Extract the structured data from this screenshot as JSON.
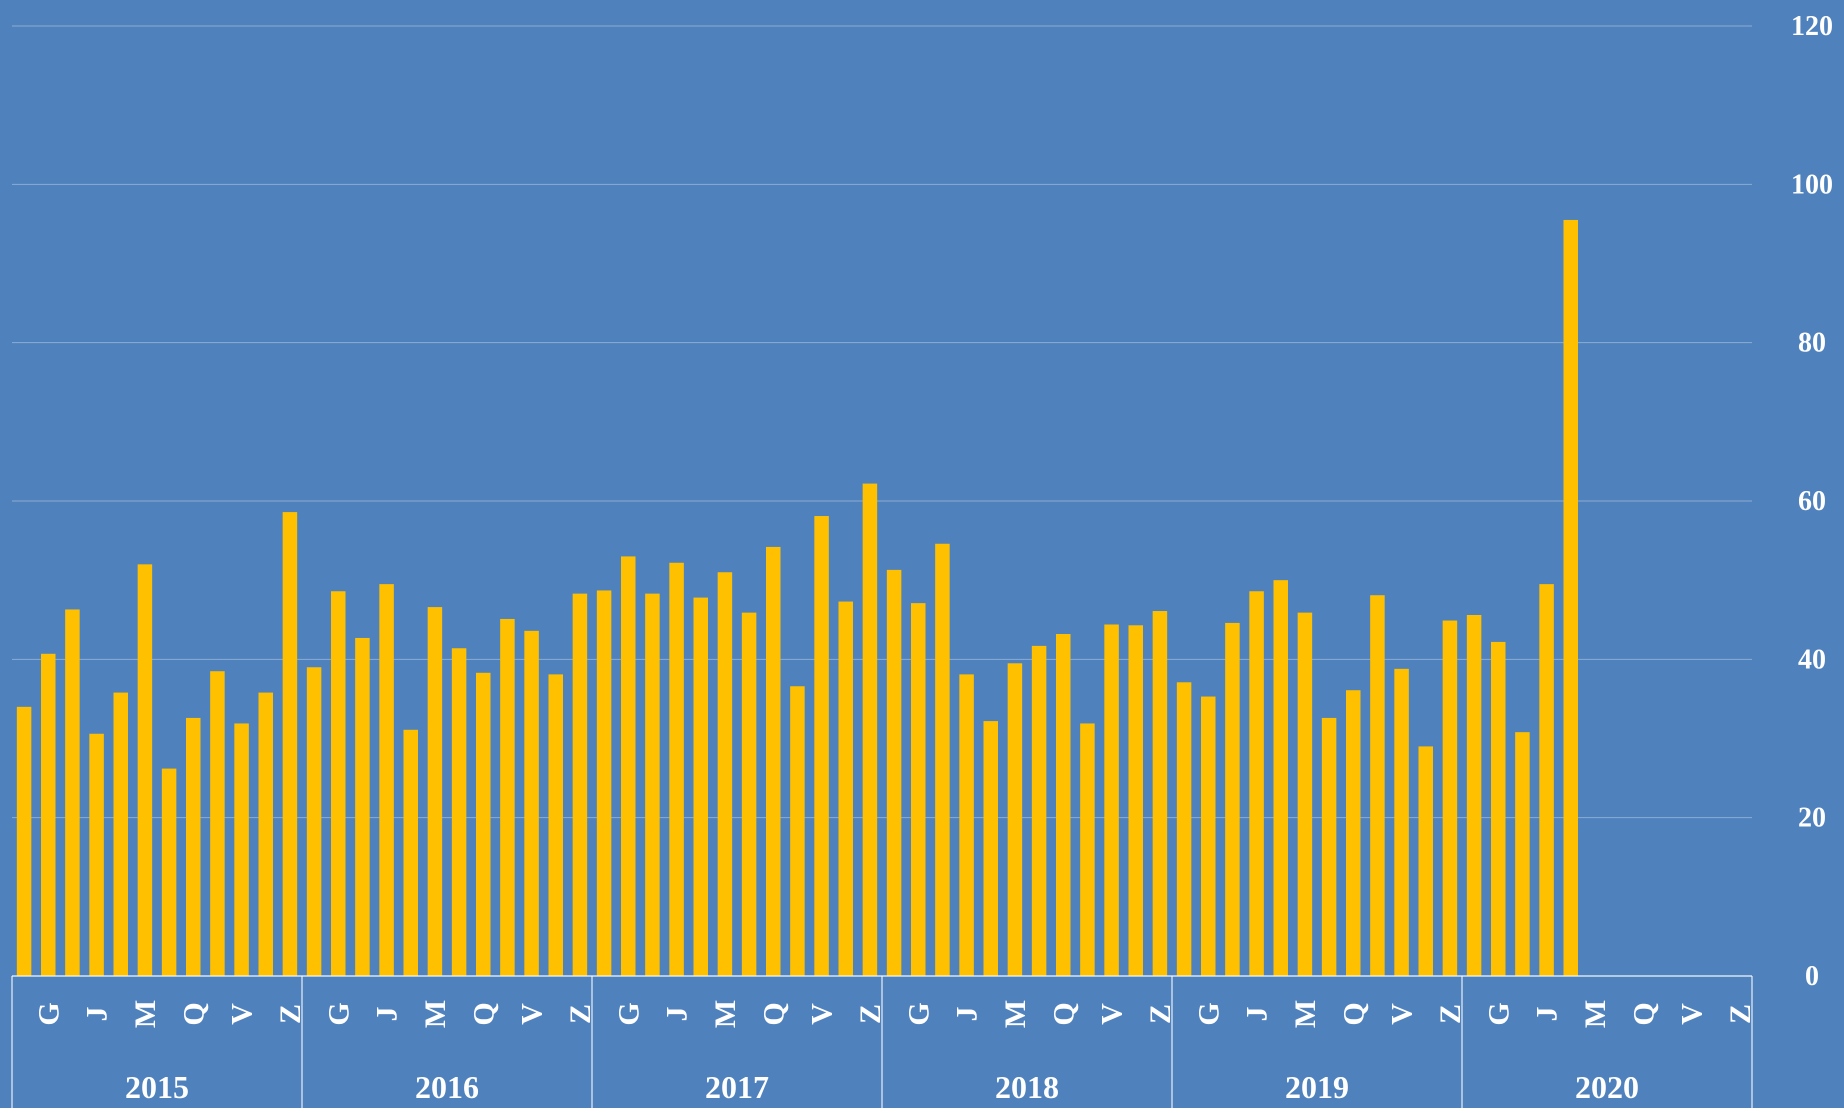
{
  "chart_data": {
    "type": "bar",
    "categories": [
      null,
      "G",
      null,
      "J",
      null,
      "M",
      null,
      "Q",
      null,
      "V",
      null,
      "Z",
      null,
      "G",
      null,
      "J",
      null,
      "M",
      null,
      "Q",
      null,
      "V",
      null,
      "Z",
      null,
      "G",
      null,
      "J",
      null,
      "M",
      null,
      "Q",
      null,
      "V",
      null,
      "Z",
      null,
      "G",
      null,
      "J",
      null,
      "M",
      null,
      "Q",
      null,
      "V",
      null,
      "Z",
      null,
      "G",
      null,
      "J",
      null,
      "M",
      null,
      "Q",
      null,
      "V",
      null,
      "Z",
      null,
      "G",
      null,
      "J",
      null,
      "M",
      null,
      "Q",
      null,
      "V",
      null,
      "Z"
    ],
    "groups": [
      "2015",
      "2016",
      "2017",
      "2018",
      "2019",
      "2020"
    ],
    "values": [
      34,
      40.7,
      46.3,
      30.6,
      35.8,
      52,
      26.2,
      32.6,
      38.5,
      31.9,
      35.8,
      58.6,
      39,
      48.6,
      42.7,
      49.5,
      31.1,
      46.6,
      41.4,
      38.3,
      45.1,
      43.6,
      38.1,
      48.3,
      48.7,
      53,
      48.3,
      52.2,
      47.8,
      51,
      45.9,
      54.2,
      36.6,
      58.1,
      47.3,
      62.2,
      51.3,
      47.1,
      54.6,
      38.1,
      32.2,
      39.5,
      41.7,
      43.2,
      31.9,
      44.4,
      44.3,
      46.1,
      37.1,
      35.3,
      44.6,
      48.6,
      50,
      45.9,
      32.6,
      36.1,
      48.1,
      38.8,
      29,
      44.9,
      45.6,
      42.2,
      30.8,
      49.5,
      95.5,
      null,
      null,
      null,
      null,
      null,
      null,
      null
    ],
    "color": "#ffc000",
    "background": "#4f81bd",
    "ylim": [
      0,
      120
    ],
    "yticks": [
      0,
      20,
      40,
      60,
      80,
      100,
      120
    ],
    "grid": true,
    "y_axis_side": "right"
  }
}
